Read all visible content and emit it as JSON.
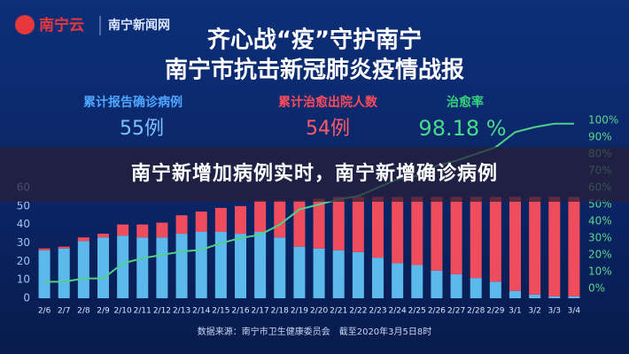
{
  "header": {
    "logo": "南宁云",
    "site": "南宁新闻网",
    "title_line1": "齐心战“疫”守护南宁",
    "title_line2": "南宁市抗击新冠肺炎疫情战报"
  },
  "stats": [
    {
      "label": "累计报告确诊病例",
      "value": "55例"
    },
    {
      "label": "累计治愈出院人数",
      "value": "54例"
    },
    {
      "label": "治愈率",
      "value": "98.18 %"
    }
  ],
  "banner": "南宁新增加病例实时，南宁新增确诊病例",
  "source": "数据来源：南宁市卫生健康委员会　截至2020年3月5日8时",
  "chart_data": {
    "type": "bar",
    "categories": [
      "2/6",
      "2/7",
      "2/8",
      "2/9",
      "2/10",
      "2/11",
      "2/12",
      "2/13",
      "2/14",
      "2/15",
      "2/16",
      "2/17",
      "2/18",
      "2/19",
      "2/20",
      "2/21",
      "2/22",
      "2/23",
      "2/24",
      "2/25",
      "2/26",
      "2/27",
      "2/28",
      "2/29",
      "3/1",
      "3/2",
      "3/3",
      "3/4"
    ],
    "series": [
      {
        "type": "bar",
        "color": "#5cb9ec",
        "values": [
          26,
          27,
          31,
          33,
          34,
          33,
          33,
          35,
          36,
          36,
          35,
          36,
          33,
          28,
          27,
          26,
          25,
          22,
          19,
          18,
          15,
          13,
          11,
          9,
          4,
          2,
          1,
          1
        ]
      },
      {
        "type": "bar",
        "color": "#ef4d5e",
        "values": [
          1,
          1,
          2,
          2,
          6,
          7,
          8,
          10,
          11,
          13,
          15,
          17,
          20,
          25,
          27,
          29,
          30,
          33,
          36,
          37,
          40,
          42,
          44,
          46,
          51,
          53,
          54,
          54
        ]
      },
      {
        "type": "line",
        "axis": "y2",
        "color": "#4fd18a",
        "values": [
          4,
          4,
          6,
          6,
          15,
          18,
          20,
          22,
          23,
          27,
          30,
          32,
          38,
          47,
          50,
          53,
          55,
          60,
          65,
          67,
          73,
          76,
          80,
          84,
          93,
          96,
          98,
          98
        ]
      }
    ],
    "ylim": [
      0,
      60
    ],
    "yticks": [
      0,
      10,
      20,
      30,
      40,
      50,
      60
    ],
    "y2lim": [
      0,
      100
    ],
    "y2ticks": [
      {
        "value": 0,
        "label": "0%"
      },
      {
        "value": 10,
        "label": "10%"
      },
      {
        "value": 20,
        "label": "20%"
      },
      {
        "value": 30,
        "label": "30%"
      },
      {
        "value": 40,
        "label": "40%"
      },
      {
        "value": 50,
        "label": "50%"
      },
      {
        "value": 60,
        "label": "60%"
      },
      {
        "value": 70,
        "label": "70%"
      },
      {
        "value": 80,
        "label": "80%"
      },
      {
        "value": 90,
        "label": "90%"
      },
      {
        "value": 100,
        "label": "100%"
      }
    ],
    "grid": false
  }
}
